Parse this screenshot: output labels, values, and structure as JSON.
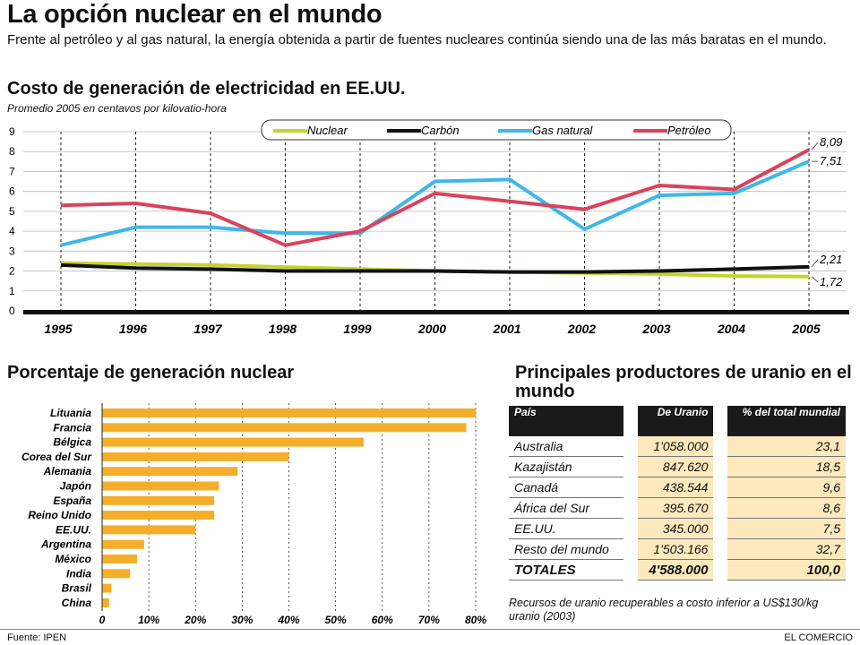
{
  "header": {
    "title": "La opción nuclear en el mundo",
    "subtitle": "Frente al petróleo y al gas natural, la energía obtenida a partir de fuentes nucleares continúa siendo una de las más baratas en el mundo."
  },
  "chart_data": [
    {
      "type": "line",
      "title": "Costo de generación de electricidad en EE.UU.",
      "subtitle": "Promedio 2005 en centavos por kilovatio-hora",
      "x": [
        1995,
        1996,
        1997,
        1998,
        1999,
        2000,
        2001,
        2002,
        2003,
        2004,
        2005
      ],
      "x_labels": [
        "1995",
        "1996",
        "1997",
        "1998",
        "1999",
        "2000",
        "2001",
        "2002",
        "2003",
        "2004",
        "2005"
      ],
      "ylim": [
        0,
        9
      ],
      "yticks": [
        "0",
        "1",
        "2",
        "3",
        "4",
        "5",
        "6",
        "7",
        "8",
        "9"
      ],
      "legend_position": "top-right",
      "series": [
        {
          "name": "Nuclear",
          "color": "#c5d42a",
          "values": [
            2.4,
            2.35,
            2.3,
            2.2,
            2.1,
            2.0,
            1.95,
            1.9,
            1.85,
            1.75,
            1.72
          ]
        },
        {
          "name": "Carbón",
          "color": "#111111",
          "values": [
            2.3,
            2.15,
            2.1,
            2.0,
            2.0,
            2.0,
            1.95,
            1.95,
            2.0,
            2.1,
            2.21
          ]
        },
        {
          "name": "Gas natural",
          "color": "#3db8e8",
          "values": [
            3.3,
            4.2,
            4.2,
            3.9,
            3.9,
            6.5,
            6.6,
            4.1,
            5.8,
            5.9,
            7.51
          ]
        },
        {
          "name": "Petróleo",
          "color": "#d9435c",
          "values": [
            5.3,
            5.4,
            4.9,
            3.3,
            4.0,
            5.9,
            5.5,
            5.1,
            6.3,
            6.1,
            8.09
          ]
        }
      ],
      "end_labels": [
        {
          "series": "Petróleo",
          "text": "8,09"
        },
        {
          "series": "Gas natural",
          "text": "7,51"
        },
        {
          "series": "Carbón",
          "text": "2,21"
        },
        {
          "series": "Nuclear",
          "text": "1,72"
        }
      ]
    },
    {
      "type": "bar",
      "orientation": "horizontal",
      "title": "Porcentaje de generación nuclear",
      "categories": [
        "Lituania",
        "Francia",
        "Bélgica",
        "Corea del Sur",
        "Alemania",
        "Japón",
        "España",
        "Reino Unido",
        "EE.UU.",
        "Argentina",
        "México",
        "India",
        "Brasil",
        "China"
      ],
      "values": [
        80,
        78,
        56,
        40,
        29,
        25,
        24,
        24,
        20,
        9,
        7.5,
        6,
        2,
        1.5
      ],
      "color": "#f5ae2a",
      "xlim": [
        0,
        80
      ],
      "xticks": [
        "0",
        "10%",
        "20%",
        "30%",
        "40%",
        "50%",
        "60%",
        "70%",
        "80%"
      ]
    }
  ],
  "uranium": {
    "title": "Principales productores de uranio en el mundo",
    "headers": {
      "country": "País",
      "uranium": "De Uranio",
      "pct": "% del total mundial"
    },
    "rows": [
      {
        "country": "Australia",
        "uranium": "1'058.000",
        "pct": "23,1"
      },
      {
        "country": "Kazajistán",
        "uranium": "847.620",
        "pct": "18,5"
      },
      {
        "country": "Canadá",
        "uranium": "438.544",
        "pct": "9,6"
      },
      {
        "country": "África del Sur",
        "uranium": "395.670",
        "pct": "8,6"
      },
      {
        "country": "EE.UU.",
        "uranium": "345.000",
        "pct": "7,5"
      },
      {
        "country": "Resto del mundo",
        "uranium": "1'503.166",
        "pct": "32,7"
      }
    ],
    "total": {
      "country": "TOTALES",
      "uranium": "4'588.000",
      "pct": "100,0"
    },
    "note": "Recursos de uranio recuperables a costo inferior a US$130/kg uranio (2003)"
  },
  "footer": {
    "source": "Fuente: IPEN",
    "credit": "EL COMERCIO"
  }
}
